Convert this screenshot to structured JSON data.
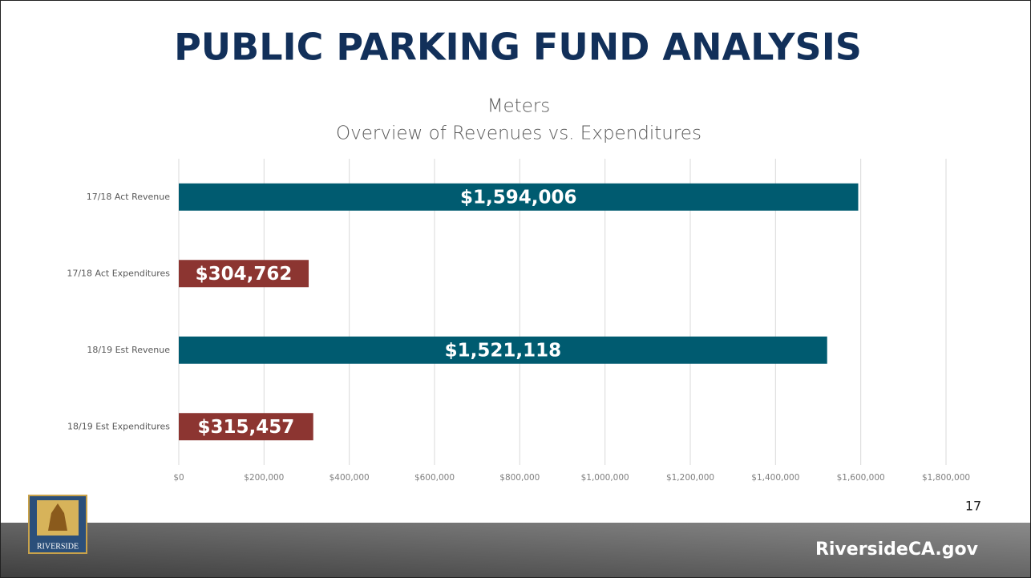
{
  "slide": {
    "title": "PUBLIC PARKING FUND ANALYSIS",
    "page_number": "17",
    "footer": "RiversideCA.gov",
    "logo_text": "RIVERSIDE"
  },
  "chart_data": {
    "type": "bar",
    "orientation": "horizontal",
    "title": "Meters",
    "subtitle": "Overview of Revenues vs. Expenditures",
    "categories": [
      "17/18 Act Revenue",
      "17/18 Act Expenditures",
      "18/19 Est Revenue",
      "18/19 Est Expenditures"
    ],
    "values": [
      1594006,
      304762,
      1521118,
      315457
    ],
    "value_labels": [
      "$1,594,006",
      "$304,762",
      "$1,521,118",
      "$315,457"
    ],
    "colors": [
      "#005b70",
      "#8c3531",
      "#005b70",
      "#8c3531"
    ],
    "xlim": [
      0,
      1800000
    ],
    "xticks": [
      {
        "value": 0,
        "label": "$0"
      },
      {
        "value": 200000,
        "label": "$200,000"
      },
      {
        "value": 400000,
        "label": "$400,000"
      },
      {
        "value": 600000,
        "label": "$600,000"
      },
      {
        "value": 800000,
        "label": "$800,000"
      },
      {
        "value": 1000000,
        "label": "$1,000,000"
      },
      {
        "value": 1200000,
        "label": "$1,200,000"
      },
      {
        "value": 1400000,
        "label": "$1,400,000"
      },
      {
        "value": 1600000,
        "label": "$1,600,000"
      },
      {
        "value": 1800000,
        "label": "$1,800,000"
      }
    ],
    "grid": true
  }
}
